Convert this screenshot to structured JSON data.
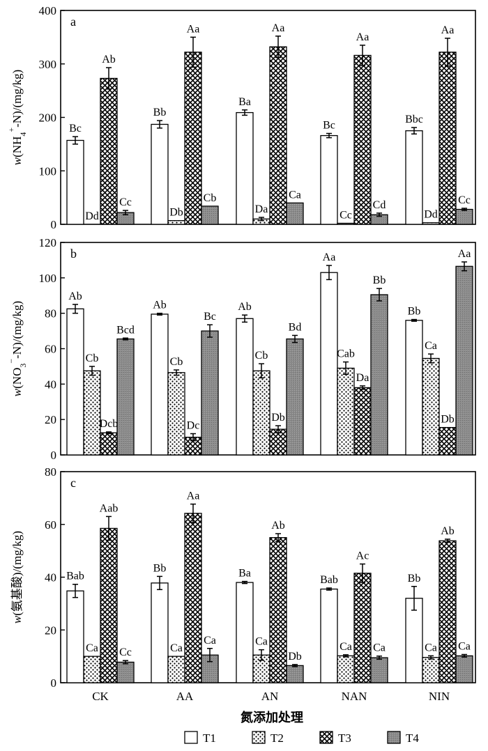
{
  "chart_data": [
    {
      "type": "bar",
      "panel": "a",
      "ylabel_parts": [
        "w",
        "(NH",
        "4",
        "+",
        "-N)/(mg/kg)"
      ],
      "ylim": [
        0,
        400
      ],
      "yticks": [
        0,
        100,
        200,
        300,
        400
      ],
      "categories": [
        "CK",
        "AA",
        "AN",
        "NAN",
        "NIN"
      ],
      "series": [
        {
          "name": "T1",
          "values": [
            157,
            187,
            209,
            166,
            175
          ],
          "errors": [
            7,
            7,
            5,
            4,
            6
          ],
          "labels": [
            "Bc",
            "Bb",
            "Ba",
            "Bc",
            "Bbc"
          ]
        },
        {
          "name": "T2",
          "values": [
            0,
            7,
            10,
            2,
            3
          ],
          "errors": [
            0,
            0,
            3,
            0,
            0
          ],
          "labels": [
            "Dd",
            "Db",
            "Da",
            "Cc",
            "Dd"
          ]
        },
        {
          "name": "T3",
          "values": [
            273,
            322,
            332,
            316,
            322
          ],
          "errors": [
            20,
            28,
            20,
            19,
            26
          ],
          "labels": [
            "Ab",
            "Aa",
            "Aa",
            "Aa",
            "Aa"
          ]
        },
        {
          "name": "T4",
          "values": [
            22,
            34,
            40,
            18,
            28
          ],
          "errors": [
            4,
            0,
            0,
            3,
            2
          ],
          "labels": [
            "Cc",
            "Cb",
            "Ca",
            "Cd",
            "Cc"
          ]
        }
      ]
    },
    {
      "type": "bar",
      "panel": "b",
      "ylabel_parts": [
        "w",
        "(NO",
        "3",
        "−",
        "-N)/(mg/kg)"
      ],
      "ylim": [
        0,
        120
      ],
      "yticks": [
        0,
        20,
        40,
        60,
        80,
        100,
        120
      ],
      "categories": [
        "CK",
        "AA",
        "AN",
        "NAN",
        "NIN"
      ],
      "series": [
        {
          "name": "T1",
          "values": [
            82.5,
            79.5,
            77,
            103,
            76
          ],
          "errors": [
            2.5,
            0.5,
            2,
            4,
            0.5
          ],
          "labels": [
            "Ab",
            "Ab",
            "Ab",
            "Aa",
            "Bb"
          ]
        },
        {
          "name": "T2",
          "values": [
            47.5,
            46.5,
            47.5,
            49,
            54.5
          ],
          "errors": [
            2.5,
            1.5,
            4,
            3.5,
            2.5
          ],
          "labels": [
            "Cb",
            "Cb",
            "Cb",
            "Cab",
            "Ca"
          ]
        },
        {
          "name": "T3",
          "values": [
            12.5,
            10,
            14.5,
            38,
            15.5
          ],
          "errors": [
            0.5,
            2,
            2,
            1,
            0
          ],
          "labels": [
            "Dcb",
            "Dc",
            "Db",
            "Da",
            "Db"
          ]
        },
        {
          "name": "T4",
          "values": [
            65.5,
            70,
            65.5,
            90.5,
            106.5
          ],
          "errors": [
            0.5,
            3.5,
            2,
            3.5,
            2.5
          ],
          "labels": [
            "Bcd",
            "Bc",
            "Bd",
            "Bb",
            "Aa"
          ]
        }
      ]
    },
    {
      "type": "bar",
      "panel": "c",
      "ylabel_parts": [
        "w",
        "(氨基酸)/(mg/kg)"
      ],
      "ylim": [
        0,
        80
      ],
      "yticks": [
        0,
        20,
        40,
        60,
        80
      ],
      "categories": [
        "CK",
        "AA",
        "AN",
        "NAN",
        "NIN"
      ],
      "series": [
        {
          "name": "T1",
          "values": [
            34.8,
            37.8,
            38,
            35.5,
            32
          ],
          "errors": [
            2.5,
            2.5,
            0.4,
            0.4,
            4.5
          ],
          "labels": [
            "Bab",
            "Bb",
            "Ba",
            "Bab",
            "Bb"
          ]
        },
        {
          "name": "T2",
          "values": [
            10,
            10,
            10.5,
            10.2,
            9.6
          ],
          "errors": [
            0,
            0,
            2,
            0.4,
            0.6
          ],
          "labels": [
            "Ca",
            "Ca",
            "Ca",
            "Ca",
            "Ca"
          ]
        },
        {
          "name": "T3",
          "values": [
            58.5,
            64.2,
            55,
            41.5,
            53.8
          ],
          "errors": [
            4.5,
            3.5,
            1.5,
            3.5,
            0.6
          ],
          "labels": [
            "Aab",
            "Aa",
            "Ab",
            "Ac",
            "Ab"
          ]
        },
        {
          "name": "T4",
          "values": [
            7.8,
            10.5,
            6.5,
            9.5,
            10.2
          ],
          "errors": [
            0.6,
            2.5,
            0.4,
            0.6,
            0.5
          ],
          "labels": [
            "Cc",
            "Ca",
            "Db",
            "Ca",
            "Ca"
          ]
        }
      ]
    }
  ],
  "xlabel": "氮添加处理",
  "legend": [
    {
      "name": "T1",
      "pattern": "white"
    },
    {
      "name": "T2",
      "pattern": "dots"
    },
    {
      "name": "T3",
      "pattern": "crosshatch"
    },
    {
      "name": "T4",
      "pattern": "gray"
    }
  ]
}
